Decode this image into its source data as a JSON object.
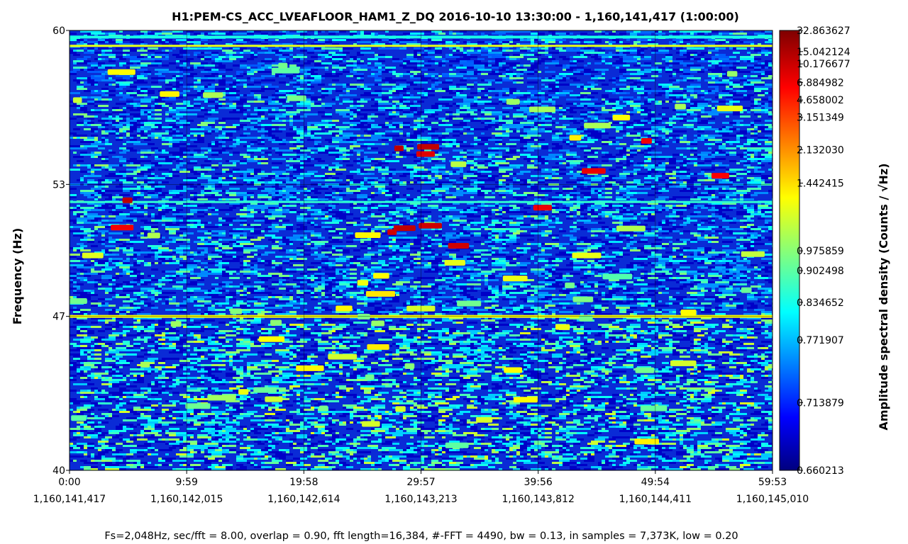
{
  "chart_data": {
    "type": "heatmap",
    "subtype": "spectrogram",
    "title": "H1:PEM-CS_ACC_LVEAFLOOR_HAM1_Z_DQ 2016-10-10 13:30:00 - 1,160,141,417 (1:00:00)",
    "ylabel": "Frequency (Hz)",
    "ylim": [
      40,
      60
    ],
    "y_ticks": [
      "60",
      "53",
      "47",
      "40"
    ],
    "x_ticks": [
      {
        "time": "0:00",
        "gps": "1,160,141,417"
      },
      {
        "time": "9:59",
        "gps": "1,160,142,015"
      },
      {
        "time": "19:58",
        "gps": "1,160,142,614"
      },
      {
        "time": "29:57",
        "gps": "1,160,143,213"
      },
      {
        "time": "39:56",
        "gps": "1,160,143,812"
      },
      {
        "time": "49:54",
        "gps": "1,160,144,411"
      },
      {
        "time": "59:53",
        "gps": "1,160,145,010"
      }
    ],
    "colorbar": {
      "label": "Amplitude spectral density (Counts / √Hz)",
      "scale": "nonlinear",
      "colormap": "jet",
      "ticks": [
        "32.863627",
        "15.042124",
        "10.176677",
        "6.884982",
        "4.658002",
        "3.151349",
        "2.132030",
        "1.442415",
        "0.975859",
        "0.902498",
        "0.834652",
        "0.771907",
        "0.713879",
        "0.660213"
      ]
    },
    "footer": "Fs=2,048Hz, sec/fft = 8.00, overlap = 0.90, fft length=16,384, #-FFT = 4490, bw = 0.13, in samples = 7,373K, low = 0.20",
    "grid": true
  }
}
